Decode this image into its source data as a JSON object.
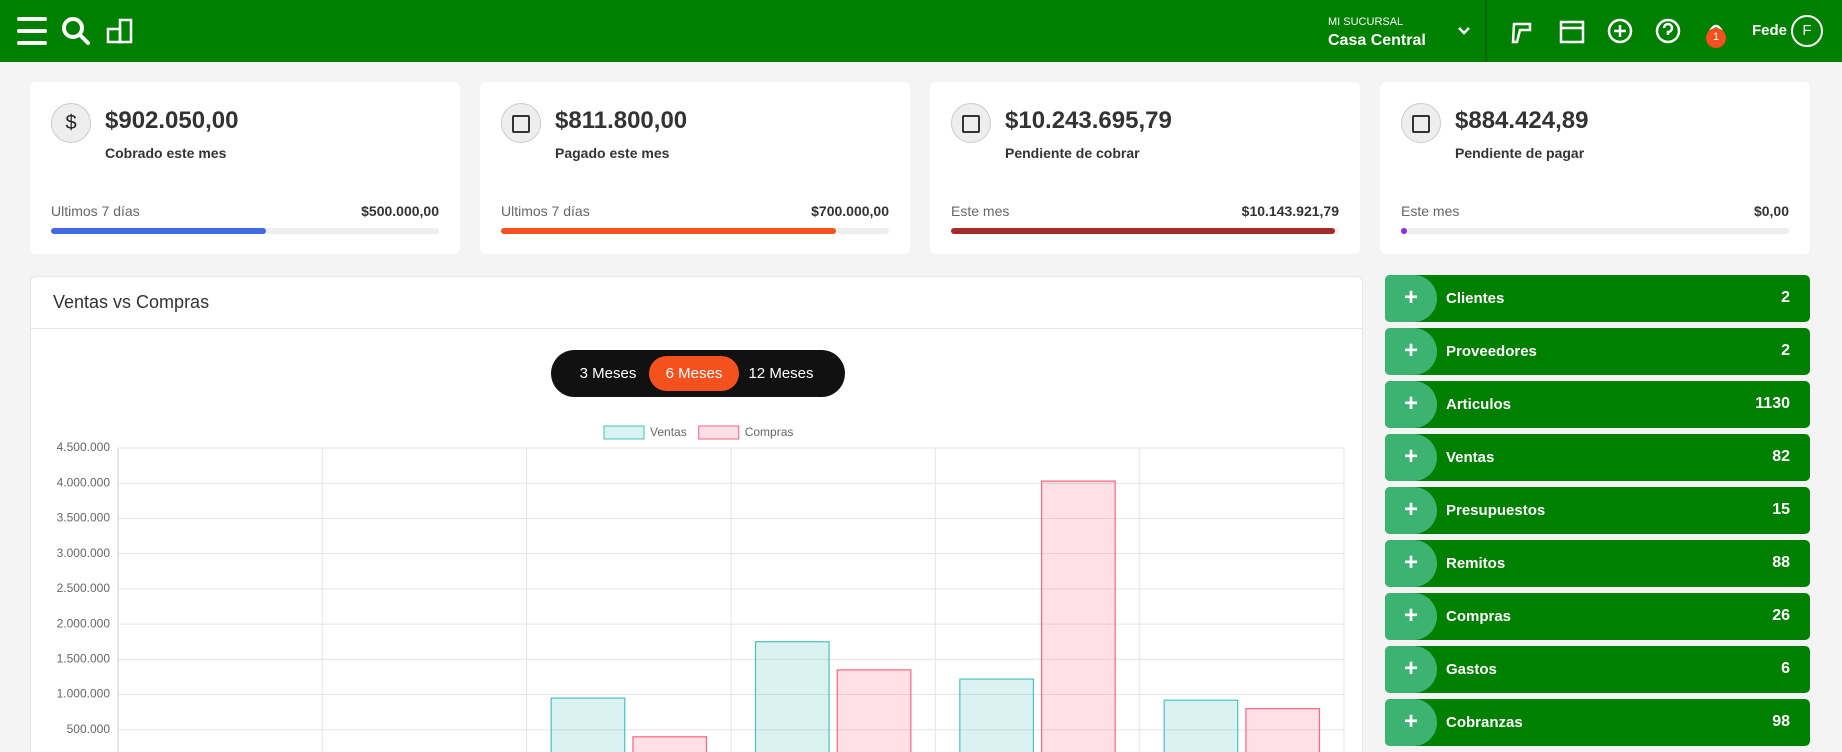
{
  "header": {
    "branch_label": "MI SUCURSAL",
    "branch": "Casa Central",
    "notifications": 1,
    "user": "Fede",
    "avatar": "F"
  },
  "cards": [
    {
      "amount": "$902.050,00",
      "label": "Cobrado este mes",
      "period": "Ultimos 7 días",
      "period_amount": "$500.000,00",
      "color": "#4169e1",
      "icon": "$"
    },
    {
      "amount": "$811.800,00",
      "label": "Pagado este mes",
      "period": "Ultimos 7 días",
      "period_amount": "$700.000,00",
      "color": "#f4511e",
      "icon": "bag"
    },
    {
      "amount": "$10.243.695,79",
      "label": "Pendiente de cobrar",
      "period": "Este mes",
      "period_amount": "$10.143.921,79",
      "color": "#a52a2a",
      "icon": "register"
    },
    {
      "amount": "$884.424,89",
      "label": "Pendiente de pagar",
      "period": "Este mes",
      "period_amount": "$0,00",
      "color": "#8a2be2",
      "icon": "bank"
    }
  ],
  "chart_data": {
    "type": "bar",
    "title": "Ventas vs Compras",
    "ranges": [
      "3 Meses",
      "6 Meses",
      "12 Meses"
    ],
    "selected_range": 1,
    "categories": [
      null,
      null,
      null,
      null,
      null,
      null
    ],
    "series": [
      {
        "name": "Ventas",
        "color": "#4bc0c0",
        "values": [
          0,
          0,
          950000,
          1750000,
          1220000,
          920000
        ]
      },
      {
        "name": "Compras",
        "color": "#ff6384",
        "values": [
          0,
          0,
          400000,
          1350000,
          4030000,
          800000
        ]
      }
    ],
    "ylim": [
      0,
      4500000
    ],
    "yticks": [
      {
        "value": 500000,
        "label": "500.000"
      },
      {
        "value": 1000000,
        "label": "1.000.000"
      },
      {
        "value": 1500000,
        "label": "1.500.000"
      },
      {
        "value": 2000000,
        "label": "2.000.000"
      },
      {
        "value": 2500000,
        "label": "2.500.000"
      },
      {
        "value": 3000000,
        "label": "3.000.000"
      },
      {
        "value": 3500000,
        "label": "3.500.000"
      },
      {
        "value": 4000000,
        "label": "4.000.000"
      },
      {
        "value": 4500000,
        "label": "4.500.000"
      }
    ],
    "grid": true
  },
  "quick_links": [
    {
      "label": "Clientes",
      "count": 2
    },
    {
      "label": "Proveedores",
      "count": 2
    },
    {
      "label": "Articulos",
      "count": 1130
    },
    {
      "label": "Ventas",
      "count": 82
    },
    {
      "label": "Presupuestos",
      "count": 15
    },
    {
      "label": "Remitos",
      "count": 88
    },
    {
      "label": "Compras",
      "count": 26
    },
    {
      "label": "Gastos",
      "count": 6
    },
    {
      "label": "Cobranzas",
      "count": 98
    }
  ]
}
